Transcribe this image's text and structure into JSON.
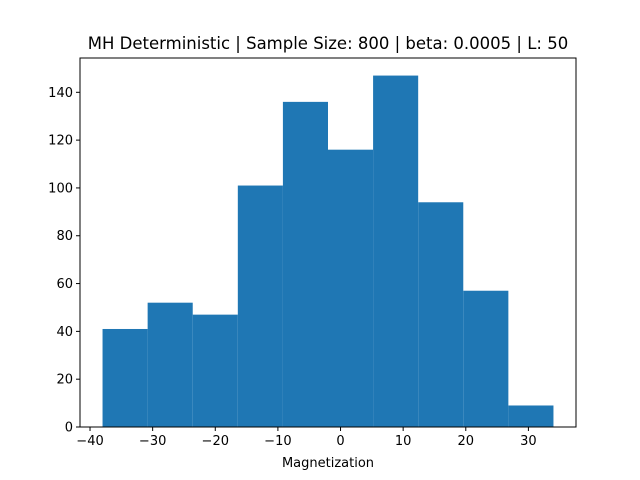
{
  "chart_data": {
    "type": "bar",
    "title": "MH Deterministic | Sample Size: 800 | beta: 0.0005 | L: 50",
    "xlabel": "Magnetization",
    "ylabel": "",
    "bar_color": "#1f77b4",
    "bin_edges": [
      -38,
      -30.8,
      -23.6,
      -16.4,
      -9.2,
      -2,
      5.2,
      12.4,
      19.6,
      26.8,
      34
    ],
    "values": [
      41,
      52,
      47,
      101,
      136,
      116,
      147,
      94,
      57,
      9
    ],
    "xlim": [
      -41.6,
      37.6
    ],
    "ylim": [
      0,
      154.35
    ],
    "xticks": [
      -40,
      -30,
      -20,
      -10,
      0,
      10,
      20,
      30
    ],
    "xtick_labels": [
      "−40",
      "−30",
      "−20",
      "−10",
      "0",
      "10",
      "20",
      "30"
    ],
    "yticks": [
      0,
      20,
      40,
      60,
      80,
      100,
      120,
      140
    ],
    "ytick_labels": [
      "0",
      "20",
      "40",
      "60",
      "80",
      "100",
      "120",
      "140"
    ],
    "grid": false,
    "legend": false
  }
}
